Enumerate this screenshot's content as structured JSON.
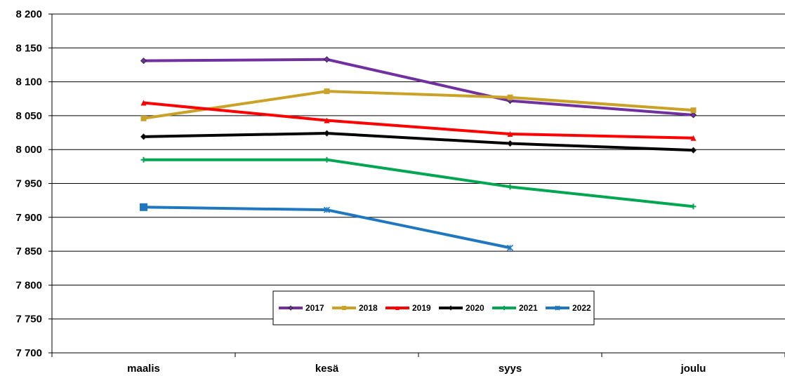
{
  "chart_data": {
    "type": "line",
    "title": "",
    "xlabel": "",
    "ylabel": "",
    "categories": [
      "maalis",
      "kesä",
      "syys",
      "joulu"
    ],
    "ylim": [
      7700,
      8200
    ],
    "y_ticks": [
      7700,
      7750,
      7800,
      7850,
      7900,
      7950,
      8000,
      8050,
      8100,
      8150,
      8200
    ],
    "y_tick_labels": [
      "7 700",
      "7 750",
      "7 800",
      "7 850",
      "7 900",
      "7 950",
      "8 000",
      "8 050",
      "8 100",
      "8 150",
      "8 200"
    ],
    "grid": "horizontal",
    "legend_position": "bottom-center",
    "series": [
      {
        "name": "2017",
        "color": "#7030A0",
        "marker": "diamond",
        "values": [
          8131,
          8133,
          8072,
          8051
        ]
      },
      {
        "name": "2018",
        "color": "#C9A227",
        "marker": "square",
        "values": [
          8046,
          8086,
          8077,
          8058
        ]
      },
      {
        "name": "2019",
        "color": "#FF0000",
        "marker": "triangle",
        "values": [
          8069,
          8043,
          8023,
          8017
        ]
      },
      {
        "name": "2020",
        "color": "#000000",
        "marker": "diamond",
        "values": [
          8019,
          8024,
          8009,
          7999
        ]
      },
      {
        "name": "2021",
        "color": "#00A651",
        "marker": "plus",
        "values": [
          7985,
          7985,
          7945,
          7916
        ]
      },
      {
        "name": "2022",
        "color": "#1F77C0",
        "marker": "star",
        "values": [
          7915,
          7911,
          7855,
          null
        ]
      }
    ]
  }
}
